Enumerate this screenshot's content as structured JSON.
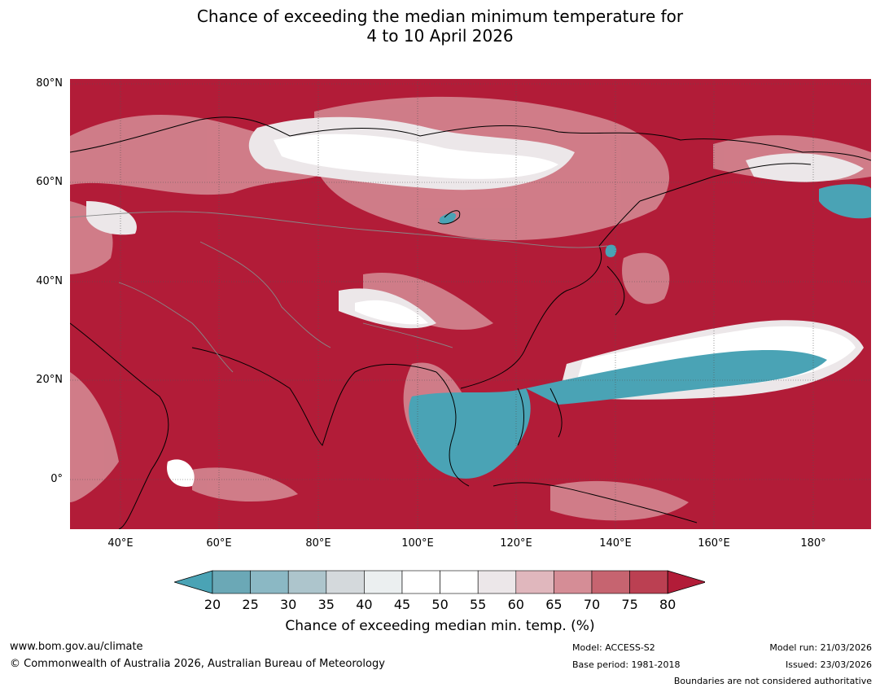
{
  "title": {
    "line1": "Chance of exceeding the median minimum temperature for",
    "line2": "4 to 10 April 2026"
  },
  "map": {
    "lat_labels": [
      "80°N",
      "60°N",
      "40°N",
      "20°N",
      "0°"
    ],
    "lon_labels": [
      "40°E",
      "60°E",
      "80°E",
      "100°E",
      "120°E",
      "140°E",
      "160°E",
      "180°"
    ]
  },
  "colorbar": {
    "ticks": [
      "20",
      "25",
      "30",
      "35",
      "40",
      "45",
      "50",
      "55",
      "60",
      "65",
      "70",
      "75",
      "80"
    ],
    "colors": [
      "#4aa3b5",
      "#6ba8b6",
      "#8bb8c4",
      "#adc5cc",
      "#d4d9dc",
      "#ebeff0",
      "#ffffff",
      "#ffffff",
      "#ece7e9",
      "#e0b7bd",
      "#d58d96",
      "#c66470",
      "#bb4052",
      "#b21c38"
    ],
    "label": "Chance of exceeding median min. temp. (%)"
  },
  "footer": {
    "url": "www.bom.gov.au/climate",
    "copyright": "© Commonwealth of Australia 2026, Australian Bureau of Meteorology",
    "model": "Model: ACCESS-S2",
    "base_period": "Base period: 1981-2018",
    "model_run": "Model run: 21/03/2026",
    "issued": "Issued: 23/03/2026",
    "disclaimer": "Boundaries are not considered authoritative"
  }
}
